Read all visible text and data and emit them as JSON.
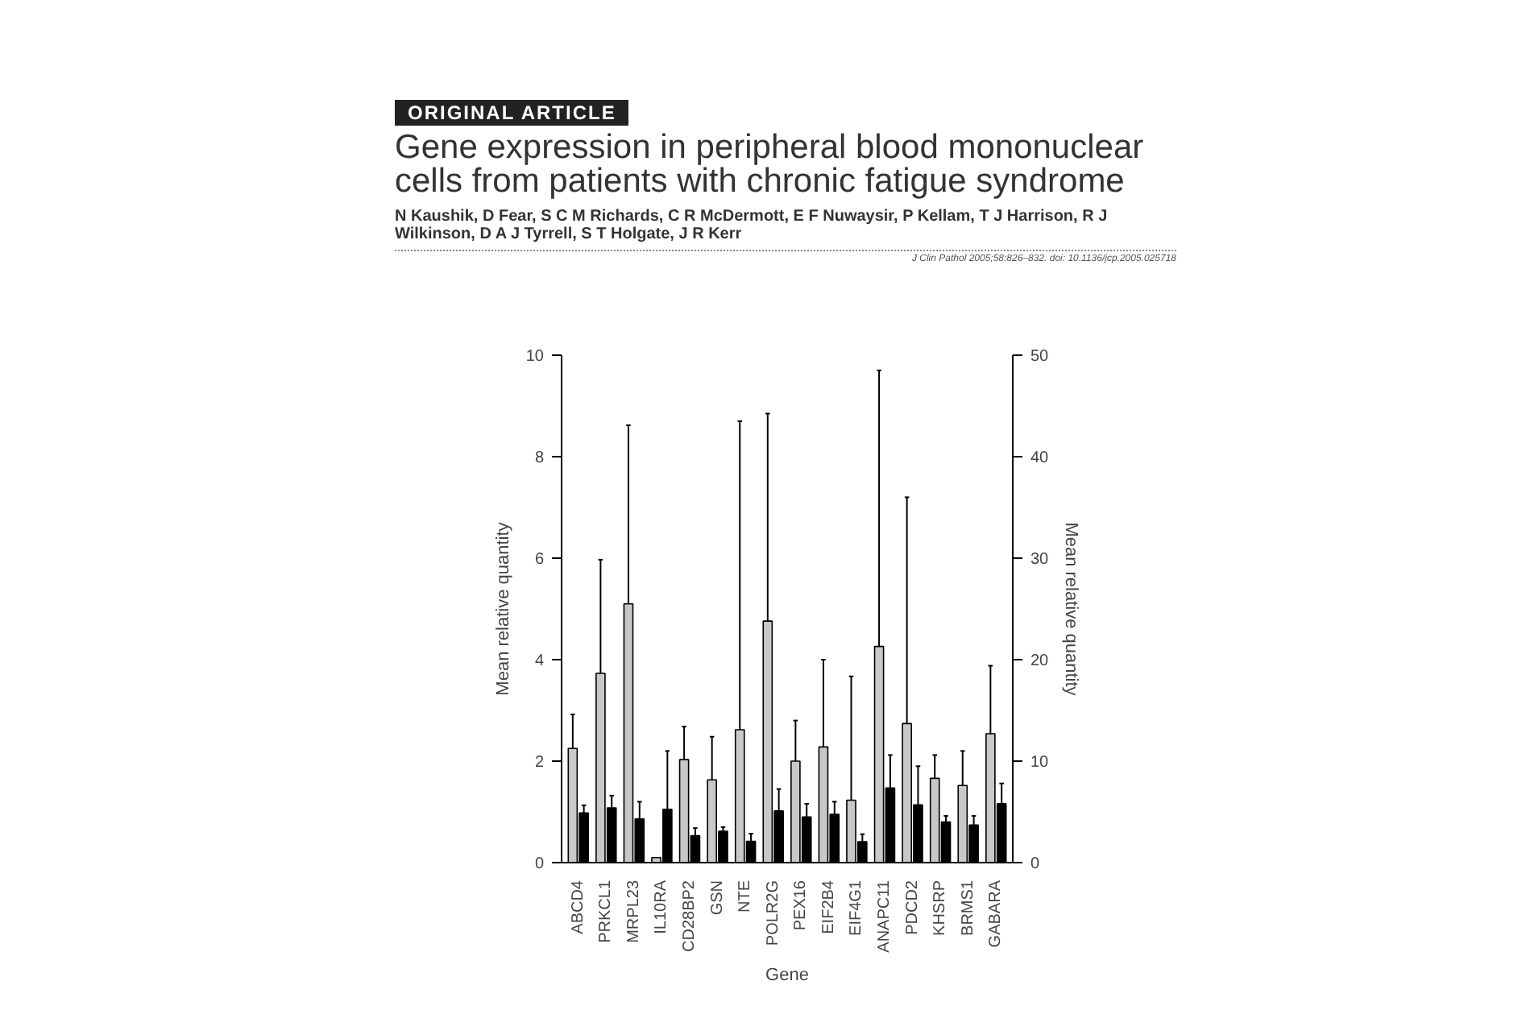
{
  "chart_data": {
    "type": "bar",
    "title": "Gene expression in peripheral blood mononuclear cells from patients with chronic fatigue syndrome",
    "subtitle": "N Kaushik, D Fear, S C M Richards, C R McDermott, E F Nuwaysir, P Kellam, T J Harrison, R J Wilkinson, D A J Tyrrell, S T Holgate, J R Kerr",
    "annotations": [
      "ORIGINAL ARTICLE",
      "J Clin Pathol 2005;58:826–832. doi: 10.1136/jcp.2005.025718"
    ],
    "xlabel": "Gene",
    "ylabel": "Mean relative quantity",
    "y2label": "Mean relative quantity",
    "categories": [
      "ABCD4",
      "PRKCL1",
      "MRPL23",
      "IL10RA",
      "CD28BP2",
      "GSN",
      "NTE",
      "POLR2G",
      "PEX16",
      "EIF2B4",
      "EIF4G1",
      "ANAPC11",
      "PDCD2",
      "KHSRP",
      "BRMS1",
      "GABARA"
    ],
    "series": [
      {
        "color": "#c8c8c8",
        "values": [
          2.25,
          3.73,
          5.1,
          0.1,
          2.03,
          1.63,
          2.62,
          4.76,
          2.0,
          2.28,
          1.23,
          4.26,
          2.74,
          1.66,
          1.52,
          2.54
        ],
        "errors": [
          [
            2.25,
            2.92
          ],
          [
            3.73,
            5.97
          ],
          [
            5.1,
            8.62
          ],
          null,
          [
            2.03,
            2.68
          ],
          [
            1.63,
            2.48
          ],
          [
            2.62,
            8.7
          ],
          [
            4.76,
            8.85
          ],
          [
            2.0,
            2.8
          ],
          [
            2.28,
            4.0
          ],
          [
            1.23,
            3.67
          ],
          [
            4.26,
            9.7
          ],
          [
            2.74,
            7.2
          ],
          [
            1.66,
            2.12
          ],
          [
            1.52,
            2.2
          ],
          [
            2.54,
            3.88
          ]
        ]
      },
      {
        "color": "#000000",
        "values": [
          0.98,
          1.08,
          0.86,
          1.05,
          0.53,
          0.62,
          0.42,
          1.02,
          0.9,
          0.95,
          0.41,
          1.47,
          1.14,
          0.8,
          0.74,
          1.16
        ],
        "errors": [
          [
            0.98,
            1.13
          ],
          [
            1.08,
            1.32
          ],
          [
            0.86,
            1.2
          ],
          [
            1.05,
            2.2
          ],
          [
            0.53,
            0.68
          ],
          [
            0.62,
            0.7
          ],
          [
            0.42,
            0.57
          ],
          [
            1.02,
            1.45
          ],
          [
            0.9,
            1.16
          ],
          [
            0.95,
            1.2
          ],
          [
            0.41,
            0.56
          ],
          [
            1.47,
            2.12
          ],
          [
            1.14,
            1.9
          ],
          [
            0.8,
            0.92
          ],
          [
            0.74,
            0.92
          ],
          [
            1.16,
            1.56
          ]
        ]
      }
    ],
    "ylim": [
      0,
      10
    ],
    "yticks": [
      0,
      2,
      4,
      6,
      8,
      10
    ],
    "y2lim": [
      0,
      50
    ],
    "y2ticks": [
      0,
      10,
      20,
      30,
      40,
      50
    ],
    "grid": false
  }
}
